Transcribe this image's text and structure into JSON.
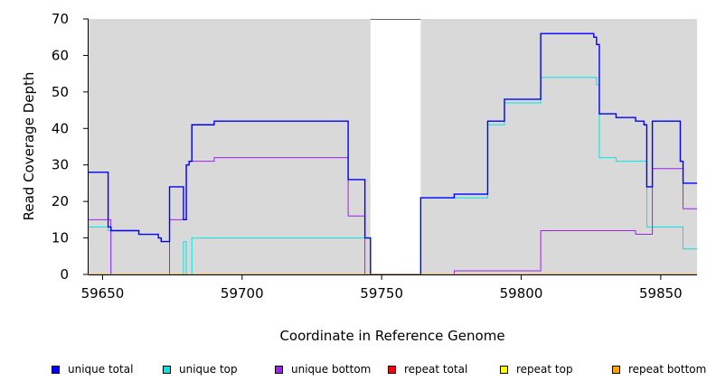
{
  "chart_data": {
    "type": "line",
    "xlabel": "Coordinate in Reference Genome",
    "ylabel": "Read Coverage Depth",
    "xlim": [
      59645,
      59863
    ],
    "ylim": [
      0,
      70
    ],
    "x_ticks": [
      59650,
      59700,
      59750,
      59800,
      59850
    ],
    "y_ticks": [
      0,
      10,
      20,
      30,
      40,
      50,
      60,
      70
    ],
    "gap_region": [
      59746,
      59764
    ],
    "background_color": "#d9d9d9",
    "series": [
      {
        "name": "unique total",
        "color": "#0000ff",
        "points": [
          [
            59645,
            28
          ],
          [
            59652,
            28
          ],
          [
            59652,
            13
          ],
          [
            59653,
            13
          ],
          [
            59653,
            12
          ],
          [
            59663,
            12
          ],
          [
            59663,
            11
          ],
          [
            59670,
            11
          ],
          [
            59670,
            10
          ],
          [
            59671,
            10
          ],
          [
            59671,
            9
          ],
          [
            59674,
            9
          ],
          [
            59674,
            24
          ],
          [
            59679,
            24
          ],
          [
            59679,
            15
          ],
          [
            59680,
            15
          ],
          [
            59680,
            30
          ],
          [
            59681,
            30
          ],
          [
            59681,
            31
          ],
          [
            59682,
            31
          ],
          [
            59682,
            41
          ],
          [
            59690,
            41
          ],
          [
            59690,
            42
          ],
          [
            59738,
            42
          ],
          [
            59738,
            26
          ],
          [
            59744,
            26
          ],
          [
            59744,
            10
          ],
          [
            59746,
            10
          ],
          [
            59746,
            0
          ],
          [
            59764,
            0
          ],
          [
            59764,
            21
          ],
          [
            59776,
            21
          ],
          [
            59776,
            22
          ],
          [
            59788,
            22
          ],
          [
            59788,
            42
          ],
          [
            59794,
            42
          ],
          [
            59794,
            48
          ],
          [
            59807,
            48
          ],
          [
            59807,
            66
          ],
          [
            59826,
            66
          ],
          [
            59826,
            65
          ],
          [
            59827,
            65
          ],
          [
            59827,
            63
          ],
          [
            59828,
            63
          ],
          [
            59828,
            44
          ],
          [
            59834,
            44
          ],
          [
            59834,
            43
          ],
          [
            59841,
            43
          ],
          [
            59841,
            42
          ],
          [
            59844,
            42
          ],
          [
            59844,
            41
          ],
          [
            59845,
            41
          ],
          [
            59845,
            24
          ],
          [
            59847,
            24
          ],
          [
            59847,
            42
          ],
          [
            59857,
            42
          ],
          [
            59857,
            31
          ],
          [
            59858,
            31
          ],
          [
            59858,
            25
          ],
          [
            59863,
            25
          ]
        ]
      },
      {
        "name": "unique top",
        "color": "#00e5e5",
        "points": [
          [
            59645,
            13
          ],
          [
            59652,
            13
          ],
          [
            59652,
            12
          ],
          [
            59653,
            12
          ],
          [
            59653,
            0
          ],
          [
            59679,
            0
          ],
          [
            59679,
            9
          ],
          [
            59680,
            9
          ],
          [
            59680,
            0
          ],
          [
            59682,
            0
          ],
          [
            59682,
            10
          ],
          [
            59746,
            10
          ],
          [
            59746,
            0
          ],
          [
            59764,
            0
          ],
          [
            59764,
            21
          ],
          [
            59788,
            21
          ],
          [
            59788,
            41
          ],
          [
            59794,
            41
          ],
          [
            59794,
            47
          ],
          [
            59807,
            47
          ],
          [
            59807,
            54
          ],
          [
            59827,
            54
          ],
          [
            59827,
            52
          ],
          [
            59828,
            52
          ],
          [
            59828,
            32
          ],
          [
            59834,
            32
          ],
          [
            59834,
            31
          ],
          [
            59845,
            31
          ],
          [
            59845,
            13
          ],
          [
            59858,
            13
          ],
          [
            59858,
            7
          ],
          [
            59863,
            7
          ]
        ]
      },
      {
        "name": "unique bottom",
        "color": "#a020f0",
        "points": [
          [
            59645,
            15
          ],
          [
            59653,
            15
          ],
          [
            59653,
            0
          ],
          [
            59674,
            0
          ],
          [
            59674,
            15
          ],
          [
            59680,
            15
          ],
          [
            59680,
            30
          ],
          [
            59681,
            30
          ],
          [
            59681,
            31
          ],
          [
            59690,
            31
          ],
          [
            59690,
            32
          ],
          [
            59738,
            32
          ],
          [
            59738,
            16
          ],
          [
            59744,
            16
          ],
          [
            59744,
            0
          ],
          [
            59776,
            0
          ],
          [
            59776,
            1
          ],
          [
            59807,
            1
          ],
          [
            59807,
            12
          ],
          [
            59841,
            12
          ],
          [
            59841,
            11
          ],
          [
            59847,
            11
          ],
          [
            59847,
            29
          ],
          [
            59858,
            29
          ],
          [
            59858,
            18
          ],
          [
            59863,
            18
          ]
        ]
      },
      {
        "name": "repeat total",
        "color": "#ff0000",
        "points": [
          [
            59645,
            0
          ],
          [
            59863,
            0
          ]
        ]
      },
      {
        "name": "repeat top",
        "color": "#ffff00",
        "points": [
          [
            59645,
            0
          ],
          [
            59863,
            0
          ]
        ]
      },
      {
        "name": "repeat bottom",
        "color": "#ffa500",
        "points": [
          [
            59645,
            0
          ],
          [
            59863,
            0
          ]
        ]
      }
    ],
    "legend_position": "bottom"
  }
}
